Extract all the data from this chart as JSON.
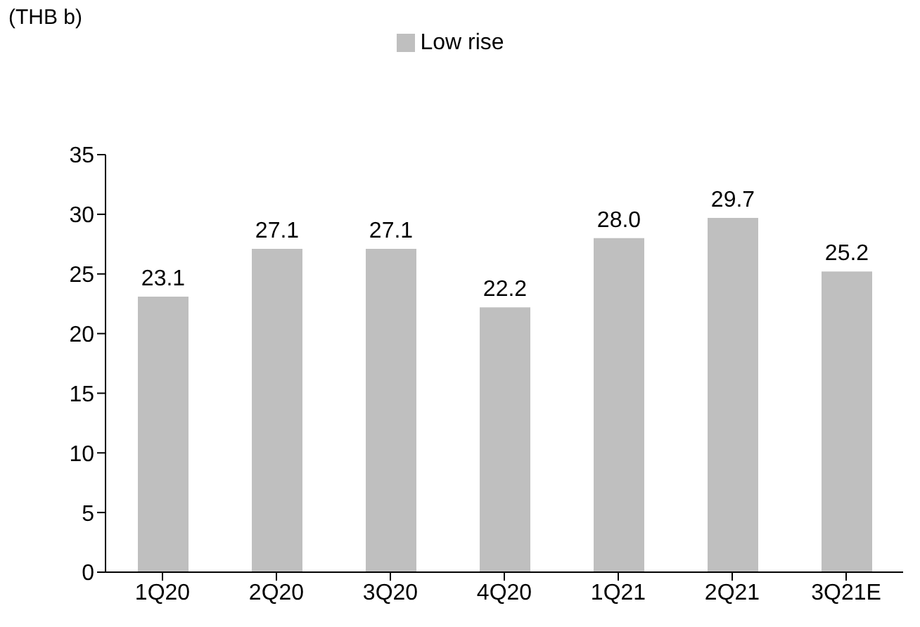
{
  "chart_data": {
    "type": "bar",
    "annotations": [
      "(THB b)"
    ],
    "categories": [
      "1Q20",
      "2Q20",
      "3Q20",
      "4Q20",
      "1Q21",
      "2Q21",
      "3Q21E"
    ],
    "series": [
      {
        "name": "Low rise",
        "color": "#bfbfbf",
        "values": [
          23.1,
          27.1,
          27.1,
          22.2,
          28.0,
          29.7,
          25.2
        ]
      }
    ],
    "ylim": [
      0,
      35
    ],
    "yticks": [
      0,
      5,
      10,
      15,
      20,
      25,
      30,
      35
    ],
    "grid": false,
    "legend": "top",
    "value_labels": [
      "23.1",
      "27.1",
      "27.1",
      "22.2",
      "28.0",
      "29.7",
      "25.2"
    ]
  }
}
